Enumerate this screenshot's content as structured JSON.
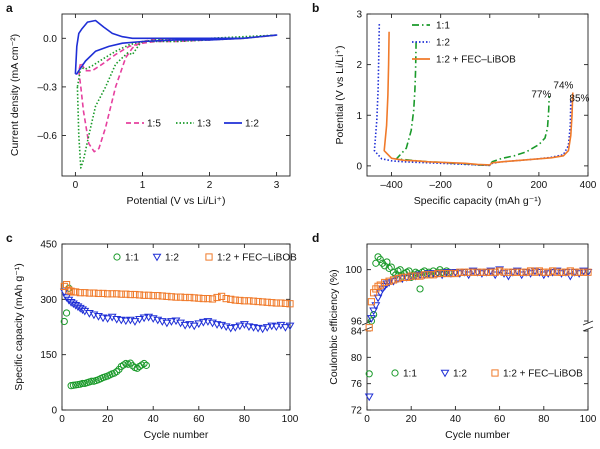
{
  "colors": {
    "magenta": "#e6409f",
    "green": "#1a9a2a",
    "blue": "#1f2fd6",
    "orange": "#f07a2a",
    "axis": "#222222"
  },
  "chart_data": [
    {
      "panel": "a",
      "type": "line",
      "xlabel": "Potential (V vs Li/Li⁺)",
      "ylabel": "Current density (mA cm⁻²)",
      "xlim": [
        -0.2,
        3.2
      ],
      "ylim": [
        -0.85,
        0.15
      ],
      "xticks": [
        0,
        1,
        2,
        3
      ],
      "yticks": [
        0.0,
        -0.3,
        -0.6
      ],
      "ytick_labels": [
        "0.0",
        "–0.3",
        "–0.6"
      ],
      "legend_position": "lower-right",
      "series": [
        {
          "name": "1:5",
          "color": "#e6409f",
          "style": "dashed",
          "x": [
            0.05,
            0.08,
            0.12,
            0.2,
            0.28,
            0.35,
            0.45,
            0.6,
            0.75,
            0.85,
            0.95,
            1.1,
            1.5,
            2.0,
            2.5,
            3.0,
            2.5,
            2.0,
            1.5,
            1.2,
            1.0,
            0.8,
            0.6,
            0.4,
            0.25,
            0.15,
            0.08,
            0.05
          ],
          "y": [
            -0.2,
            -0.3,
            -0.45,
            -0.65,
            -0.7,
            -0.68,
            -0.55,
            -0.3,
            -0.12,
            -0.06,
            -0.03,
            -0.01,
            0.0,
            0.0,
            0.0,
            0.02,
            0.0,
            -0.01,
            -0.02,
            -0.02,
            -0.03,
            -0.05,
            -0.1,
            -0.16,
            -0.2,
            -0.2,
            -0.15,
            -0.2
          ]
        },
        {
          "name": "1:3",
          "color": "#1a9a2a",
          "style": "dotted",
          "x": [
            0.03,
            0.05,
            0.08,
            0.12,
            0.2,
            0.3,
            0.45,
            0.6,
            0.7,
            0.78,
            0.85,
            0.95,
            1.0,
            1.2,
            1.6,
            2.0,
            2.5,
            3.0,
            2.5,
            2.0,
            1.5,
            1.0,
            0.8,
            0.6,
            0.4,
            0.25,
            0.15,
            0.08,
            0.03
          ],
          "y": [
            -0.3,
            -0.6,
            -0.8,
            -0.75,
            -0.6,
            -0.42,
            -0.3,
            -0.16,
            -0.12,
            -0.09,
            -0.1,
            -0.04,
            -0.02,
            -0.01,
            0.0,
            0.0,
            0.01,
            0.02,
            0.0,
            -0.01,
            -0.02,
            -0.02,
            -0.04,
            -0.08,
            -0.13,
            -0.17,
            -0.19,
            -0.18,
            -0.3
          ]
        },
        {
          "name": "1:2",
          "color": "#1f2fd6",
          "style": "solid",
          "x": [
            0.0,
            0.02,
            0.05,
            0.1,
            0.18,
            0.3,
            0.42,
            0.55,
            0.7,
            0.85,
            1.0,
            1.2,
            1.6,
            2.0,
            2.5,
            3.0,
            2.5,
            2.0,
            1.5,
            1.0,
            0.7,
            0.5,
            0.3,
            0.15,
            0.05,
            0.02,
            0.0
          ],
          "y": [
            -0.22,
            -0.05,
            0.03,
            0.06,
            0.1,
            0.11,
            0.07,
            0.03,
            0.01,
            0.0,
            0.0,
            0.0,
            0.0,
            0.0,
            0.0,
            0.02,
            0.0,
            -0.01,
            -0.01,
            -0.02,
            -0.03,
            -0.05,
            -0.08,
            -0.14,
            -0.2,
            -0.22,
            -0.22
          ]
        }
      ]
    },
    {
      "panel": "b",
      "type": "line",
      "xlabel": "Specific capacity (mAh g⁻¹)",
      "ylabel": "Potential (V vs Li/Li⁺)",
      "xlim": [
        -500,
        400
      ],
      "ylim": [
        -0.2,
        3.0
      ],
      "xticks": [
        -400,
        -200,
        0,
        200,
        400
      ],
      "xtick_labels": [
        "–400",
        "–200",
        "0",
        "200",
        "400"
      ],
      "yticks": [
        0,
        1,
        2,
        3
      ],
      "legend_position": "top-right",
      "annotations": [
        {
          "text": "77%",
          "x": 210,
          "y": 1.35
        },
        {
          "text": "74%",
          "x": 300,
          "y": 1.53
        },
        {
          "text": "85%",
          "x": 365,
          "y": 1.27
        }
      ],
      "series": [
        {
          "name": "1:1",
          "color": "#1a9a2a",
          "style": "dashdot",
          "x": [
            -300,
            -302,
            -305,
            -310,
            -320,
            -340,
            -380,
            -300,
            -250,
            -200,
            -150,
            -100,
            -50,
            0,
            10,
            50,
            100,
            150,
            200,
            225,
            235,
            240,
            242
          ],
          "y": [
            2.45,
            1.9,
            1.5,
            1.1,
            0.7,
            0.35,
            0.14,
            0.1,
            0.08,
            0.07,
            0.05,
            0.04,
            0.02,
            0.01,
            0.08,
            0.15,
            0.2,
            0.28,
            0.42,
            0.55,
            0.75,
            1.1,
            1.38
          ]
        },
        {
          "name": "1:2",
          "color": "#1f2fd6",
          "style": "dotted",
          "x": [
            -450,
            -452,
            -455,
            -460,
            -470,
            -440,
            -400,
            -350,
            -300,
            -250,
            -200,
            -150,
            -100,
            -50,
            0,
            10,
            50,
            100,
            150,
            200,
            250,
            300,
            320,
            328,
            330
          ],
          "y": [
            2.8,
            2.2,
            1.5,
            0.9,
            0.3,
            0.14,
            0.1,
            0.08,
            0.07,
            0.06,
            0.05,
            0.04,
            0.03,
            0.02,
            0.01,
            0.05,
            0.08,
            0.1,
            0.12,
            0.14,
            0.17,
            0.22,
            0.4,
            0.8,
            1.3
          ]
        },
        {
          "name": "1:2 + FEC–LiBOB",
          "color": "#f07a2a",
          "style": "solid",
          "x": [
            -410,
            -412,
            -415,
            -420,
            -430,
            -400,
            -350,
            -300,
            -250,
            -200,
            -150,
            -100,
            -50,
            0,
            10,
            50,
            100,
            150,
            200,
            250,
            300,
            320,
            330,
            335,
            338
          ],
          "y": [
            2.65,
            2.0,
            1.4,
            0.8,
            0.3,
            0.15,
            0.11,
            0.1,
            0.08,
            0.07,
            0.06,
            0.05,
            0.03,
            0.02,
            0.06,
            0.08,
            0.1,
            0.12,
            0.14,
            0.16,
            0.2,
            0.3,
            0.6,
            1.0,
            1.45
          ]
        }
      ]
    },
    {
      "panel": "c",
      "type": "scatter",
      "xlabel": "Cycle number",
      "ylabel": "Specific capacity (mAh g⁻¹)",
      "xlim": [
        0,
        100
      ],
      "ylim": [
        0,
        450
      ],
      "xticks": [
        0,
        20,
        40,
        60,
        80,
        100
      ],
      "yticks": [
        0,
        150,
        300,
        450
      ],
      "legend_position": "top",
      "series": [
        {
          "name": "1:1",
          "color": "#1a9a2a",
          "marker": "circle",
          "x": [
            1,
            2,
            3,
            4,
            5,
            6,
            7,
            8,
            9,
            10,
            11,
            12,
            13,
            14,
            15,
            16,
            17,
            18,
            19,
            20,
            21,
            22,
            23,
            24,
            25,
            26,
            27,
            28,
            29,
            30,
            31,
            32,
            33,
            34,
            35,
            36,
            37
          ],
          "y": [
            240,
            263,
            330,
            66,
            67,
            68,
            69,
            70,
            72,
            72,
            74,
            76,
            78,
            78,
            80,
            82,
            85,
            88,
            90,
            92,
            95,
            98,
            100,
            104,
            110,
            118,
            122,
            126,
            124,
            127,
            120,
            115,
            113,
            118,
            122,
            126,
            121
          ]
        },
        {
          "name": "1:2",
          "color": "#1f2fd6",
          "marker": "triangle-down",
          "x": [
            1,
            2,
            3,
            4,
            5,
            6,
            7,
            8,
            9,
            10,
            12,
            14,
            16,
            18,
            20,
            22,
            24,
            26,
            28,
            30,
            32,
            34,
            36,
            38,
            40,
            42,
            44,
            46,
            48,
            50,
            52,
            54,
            56,
            58,
            60,
            62,
            64,
            66,
            68,
            70,
            72,
            74,
            76,
            78,
            80,
            82,
            84,
            86,
            88,
            90,
            92,
            94,
            96,
            98,
            100
          ],
          "y": [
            320,
            305,
            298,
            292,
            288,
            284,
            280,
            276,
            272,
            268,
            262,
            258,
            254,
            250,
            248,
            252,
            246,
            244,
            242,
            244,
            240,
            246,
            250,
            252,
            248,
            244,
            240,
            236,
            240,
            242,
            236,
            230,
            232,
            228,
            234,
            238,
            240,
            236,
            232,
            230,
            226,
            222,
            224,
            228,
            232,
            226,
            224,
            222,
            220,
            224,
            228,
            226,
            230,
            224,
            228
          ]
        },
        {
          "name": "1:2 + FEC–LiBOB",
          "color": "#f07a2a",
          "marker": "square",
          "x": [
            1,
            2,
            3,
            4,
            5,
            6,
            8,
            10,
            12,
            14,
            16,
            18,
            20,
            22,
            24,
            26,
            28,
            30,
            32,
            34,
            36,
            38,
            40,
            42,
            44,
            46,
            48,
            50,
            52,
            54,
            56,
            58,
            60,
            62,
            64,
            66,
            68,
            70,
            72,
            74,
            76,
            78,
            80,
            82,
            84,
            86,
            88,
            90,
            92,
            94,
            96,
            98,
            100
          ],
          "y": [
            335,
            340,
            325,
            322,
            320,
            320,
            318,
            318,
            317,
            317,
            316,
            316,
            315,
            315,
            315,
            314,
            314,
            313,
            313,
            312,
            311,
            311,
            310,
            310,
            309,
            308,
            307,
            306,
            306,
            305,
            305,
            304,
            303,
            302,
            302,
            301,
            305,
            308,
            302,
            300,
            298,
            297,
            296,
            296,
            295,
            294,
            293,
            292,
            291,
            290,
            290,
            289,
            288
          ]
        }
      ]
    },
    {
      "panel": "d",
      "type": "scatter",
      "xlabel": "Cycle number",
      "ylabel": "Coulombic efficiency (%)",
      "xlim": [
        0,
        100
      ],
      "ylim": [
        72,
        102
      ],
      "axis_break": "between 84 and 96",
      "xticks": [
        0,
        20,
        40,
        60,
        80,
        100
      ],
      "yticks": [
        72,
        76,
        80,
        84,
        96,
        100
      ],
      "legend_position": "bottom",
      "series": [
        {
          "name": "1:1",
          "color": "#1a9a2a",
          "marker": "circle",
          "x": [
            1,
            2,
            3,
            4,
            5,
            6,
            7,
            8,
            9,
            10,
            11,
            12,
            13,
            14,
            15,
            16,
            17,
            18,
            19,
            20,
            21,
            22,
            23,
            24,
            25,
            26,
            27,
            28,
            29,
            30,
            31,
            32,
            33,
            34,
            35,
            36,
            37
          ],
          "y": [
            77.5,
            96,
            96.5,
            100.5,
            101,
            100.8,
            100.5,
            100.3,
            100.6,
            100.1,
            100.2,
            99.8,
            99.6,
            99.9,
            100.0,
            99.5,
            99.7,
            99.8,
            99.9,
            99.4,
            99.6,
            99.8,
            99.7,
            98.5,
            99.8,
            99.9,
            99.7,
            99.8,
            99.6,
            99.9,
            99.7,
            99.8,
            100.0,
            99.8,
            99.7,
            99.9,
            99.8
          ]
        },
        {
          "name": "1:2",
          "color": "#1f2fd6",
          "marker": "triangle-down",
          "x": [
            1,
            2,
            3,
            4,
            5,
            6,
            7,
            8,
            9,
            10,
            12,
            14,
            16,
            18,
            20,
            22,
            24,
            26,
            28,
            30,
            32,
            34,
            36,
            38,
            40,
            42,
            44,
            46,
            48,
            50,
            52,
            54,
            56,
            58,
            60,
            62,
            64,
            66,
            68,
            70,
            72,
            74,
            76,
            78,
            80,
            82,
            84,
            86,
            88,
            90,
            92,
            94,
            96,
            98,
            100
          ],
          "y": [
            74,
            96.2,
            96.8,
            97.2,
            97.8,
            98.2,
            98.5,
            98.7,
            98.9,
            99.0,
            99.1,
            99.3,
            99.3,
            99.4,
            99.5,
            99.5,
            99.6,
            99.6,
            99.7,
            99.7,
            99.7,
            99.6,
            99.8,
            99.7,
            99.8,
            99.7,
            99.8,
            99.6,
            99.9,
            99.8,
            99.7,
            99.8,
            99.9,
            99.6,
            100.0,
            99.7,
            99.5,
            99.8,
            99.9,
            99.6,
            99.8,
            99.7,
            99.9,
            99.8,
            99.6,
            99.7,
            99.8,
            99.9,
            99.7,
            99.8,
            99.5,
            99.8,
            99.7,
            99.9,
            99.8
          ]
        },
        {
          "name": "1:2 + FEC–LiBOB",
          "color": "#f07a2a",
          "marker": "square",
          "x": [
            1,
            2,
            3,
            4,
            5,
            6,
            8,
            10,
            12,
            14,
            16,
            18,
            20,
            22,
            24,
            26,
            28,
            30,
            32,
            34,
            36,
            38,
            40,
            42,
            44,
            46,
            48,
            50,
            52,
            54,
            56,
            58,
            60,
            62,
            64,
            66,
            68,
            70,
            72,
            74,
            76,
            78,
            80,
            82,
            84,
            86,
            88,
            90,
            92,
            94,
            96,
            98,
            100
          ],
          "y": [
            84.5,
            97.5,
            98.2,
            98.5,
            98.7,
            98.8,
            99.0,
            99.1,
            99.2,
            99.3,
            99.4,
            99.4,
            99.5,
            99.5,
            99.5,
            99.6,
            99.6,
            99.6,
            99.7,
            99.7,
            99.7,
            99.7,
            99.7,
            99.8,
            99.8,
            99.8,
            99.8,
            99.8,
            99.8,
            99.8,
            99.8,
            99.8,
            99.9,
            99.8,
            99.8,
            99.8,
            99.8,
            99.8,
            99.8,
            99.9,
            99.8,
            99.9,
            99.8,
            99.8,
            99.9,
            99.8,
            99.8,
            99.8,
            99.9,
            99.8,
            99.8,
            99.8,
            99.8
          ]
        }
      ]
    }
  ]
}
